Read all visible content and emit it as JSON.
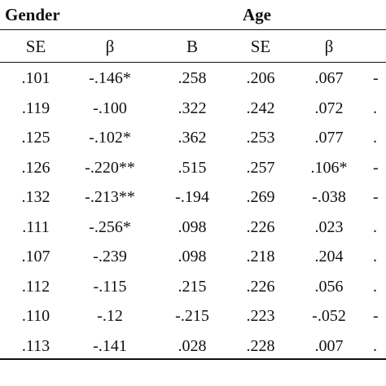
{
  "headers": {
    "gender": "Gender",
    "age": "Age"
  },
  "columns": [
    "SE",
    "β",
    "B",
    "SE",
    "β",
    ""
  ],
  "rows": [
    [
      ".101",
      "-.146*",
      ".258",
      ".206",
      ".067",
      "-"
    ],
    [
      ".119",
      "-.100",
      ".322",
      ".242",
      ".072",
      "."
    ],
    [
      ".125",
      "-.102*",
      ".362",
      ".253",
      ".077",
      "."
    ],
    [
      ".126",
      "-.220**",
      ".515",
      ".257",
      ".106*",
      "-"
    ],
    [
      ".132",
      "-.213**",
      "-.194",
      ".269",
      "-.038",
      "-"
    ],
    [
      ".111",
      "-.256*",
      ".098",
      ".226",
      ".023",
      "."
    ],
    [
      ".107",
      "-.239",
      ".098",
      ".218",
      ".204",
      "."
    ],
    [
      ".112",
      "-.115",
      ".215",
      ".226",
      ".056",
      "."
    ],
    [
      ".110",
      "-.12",
      "-.215",
      ".223",
      "-.052",
      "-"
    ],
    [
      ".113",
      "-.141",
      ".028",
      ".228",
      ".007",
      "."
    ]
  ]
}
